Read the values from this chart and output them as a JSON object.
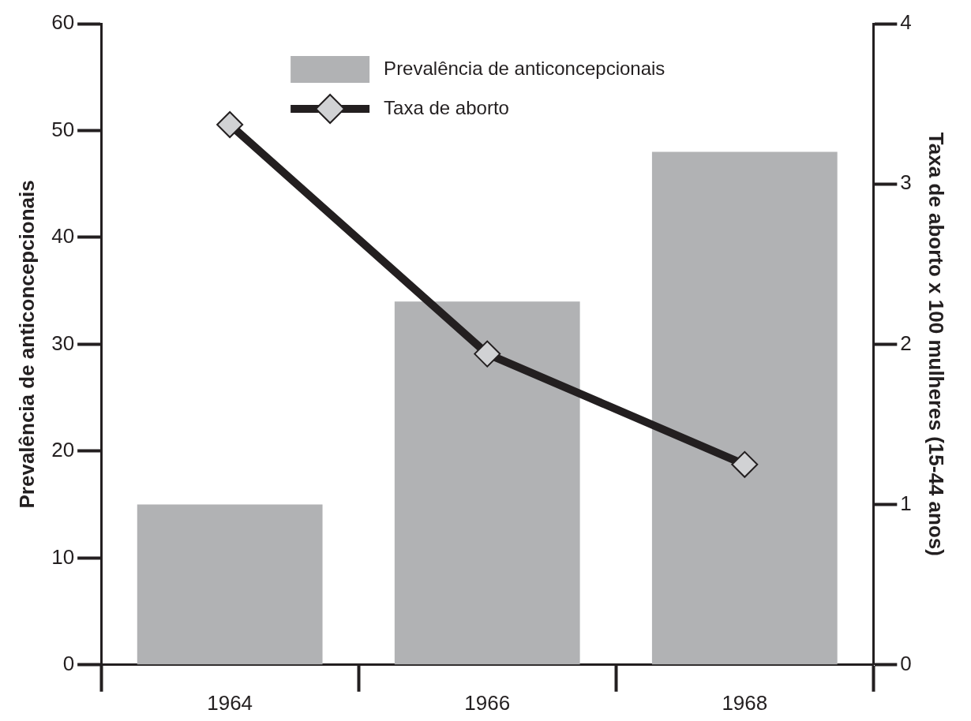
{
  "chart_data": {
    "type": "bar",
    "categories": [
      "1964",
      "1966",
      "1968"
    ],
    "ylabel": "Prevalência de anticoncepcionais",
    "y2label": "Taxa de aborto x 100 mulheres (15-44 anos)",
    "ylim": [
      0,
      60
    ],
    "yticks": [
      0,
      10,
      20,
      30,
      40,
      50,
      60
    ],
    "y2lim": [
      0,
      4
    ],
    "y2ticks": [
      0,
      1,
      2,
      3,
      4
    ],
    "series": [
      {
        "name": "Prevalência de anticoncepcionais",
        "color": "#b1b2b4",
        "values": [
          15,
          34,
          48
        ]
      },
      {
        "name": "Taxa de aborto",
        "type": "line",
        "axis": "y2",
        "color": "#231f20",
        "marker": "diamond",
        "line_style": "solid",
        "values": [
          3.37,
          1.94,
          1.25
        ]
      }
    ],
    "legend": "top",
    "grid": false
  }
}
